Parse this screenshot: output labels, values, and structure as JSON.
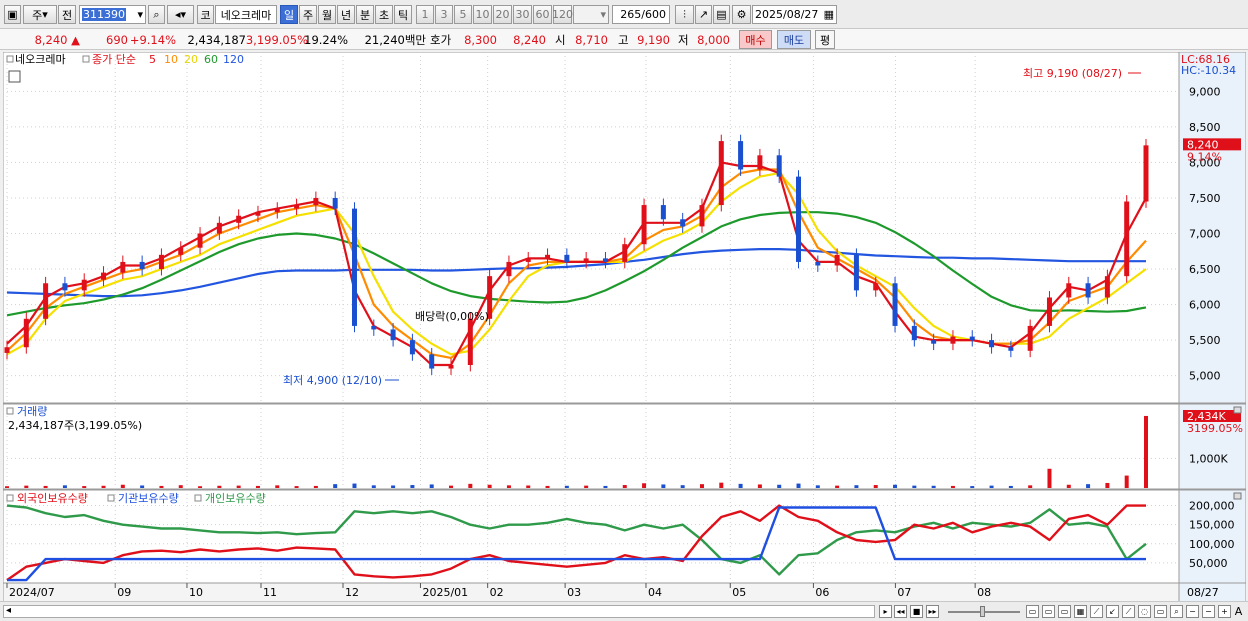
{
  "toolbar": {
    "period_type": "주",
    "range_type": "전",
    "stock_code": "311390",
    "market_tag": "코",
    "stock_name": "네오크레마",
    "periods": [
      "일",
      "주",
      "월",
      "년",
      "분",
      "초",
      "틱"
    ],
    "active_period": "일",
    "intervals": [
      "1",
      "3",
      "5",
      "10",
      "20",
      "30",
      "60",
      "120"
    ],
    "count_current": "265",
    "count_total": "600",
    "date": "2025/08/27"
  },
  "quote": {
    "price": "8,240",
    "change": "690",
    "change_pct": "+9.14%",
    "volume": "2,434,187",
    "volume_pct": "3,199.05%",
    "turnover_pct": "19.24%",
    "amount": "21,240백만",
    "bid_label": "호가",
    "bid": "8,300",
    "open_label": "시",
    "open_ref": "8,240",
    "open": "8,710",
    "high_label": "고",
    "high": "9,190",
    "low_label": "저",
    "low": "8,000",
    "buy_label": "매수",
    "sell_label": "매도",
    "eval_label": "평"
  },
  "colors": {
    "up": "#e0101a",
    "down": "#1a4fd0",
    "ma5": "#e0101a",
    "ma10": "#ff8c00",
    "ma20": "#f5e000",
    "ma60": "#1e9a2c",
    "ma120": "#2255e0",
    "foreign": "#e0101a",
    "institution": "#1e4fe0",
    "individual": "#2f9a4a"
  },
  "chart_data": {
    "type": "line",
    "price_panel": {
      "name": "네오크레마",
      "legend_label": "종가 단순",
      "ma_periods": [
        "5",
        "10",
        "20",
        "60",
        "120"
      ],
      "lc_label": "LC:68.16",
      "hc_label": "HC:-10.34",
      "ylim": [
        4700,
        9300
      ],
      "yticks": [
        "9,000",
        "8,500",
        "8,000",
        "7,500",
        "7,000",
        "6,500",
        "6,000",
        "5,500",
        "5,000"
      ],
      "ytick_values": [
        9000,
        8500,
        8000,
        7500,
        7000,
        6500,
        6000,
        5500,
        5000
      ],
      "current_price_label": "8,240",
      "current_pct_label": "9.14%",
      "current_price": 8240,
      "max_note": "최고 9,190 (08/27)",
      "min_note": "최저 4,900 (12/10)",
      "ex_dividend_note": "배당락(0,00%)",
      "close": [
        5400,
        5800,
        6300,
        6200,
        6350,
        6450,
        6600,
        6500,
        6700,
        6800,
        7000,
        7150,
        7250,
        7300,
        7350,
        7400,
        7500,
        7350,
        5700,
        5650,
        5500,
        5300,
        5100,
        5150,
        5800,
        6400,
        6600,
        6650,
        6700,
        6600,
        6650,
        6600,
        6850,
        7400,
        7200,
        7100,
        7400,
        8300,
        7900,
        8100,
        7800,
        6600,
        6550,
        6700,
        6200,
        6300,
        5700,
        5500,
        5450,
        5550,
        5500,
        5400,
        5350,
        5700,
        6100,
        6300,
        6100,
        6400,
        7450,
        8240
      ],
      "ma5": [
        5450,
        5700,
        6100,
        6250,
        6300,
        6400,
        6550,
        6550,
        6650,
        6800,
        6950,
        7100,
        7200,
        7300,
        7350,
        7400,
        7450,
        7350,
        6200,
        5700,
        5550,
        5400,
        5150,
        5150,
        5650,
        6200,
        6550,
        6650,
        6650,
        6600,
        6600,
        6600,
        6750,
        7150,
        7150,
        7150,
        7350,
        8000,
        7950,
        7950,
        7850,
        6900,
        6600,
        6600,
        6400,
        6300,
        5900,
        5550,
        5500,
        5500,
        5500,
        5450,
        5400,
        5600,
        5950,
        6250,
        6200,
        6350,
        7000,
        7500
      ],
      "ma10": [
        5350,
        5600,
        5950,
        6150,
        6250,
        6350,
        6450,
        6500,
        6600,
        6700,
        6850,
        7000,
        7100,
        7200,
        7300,
        7350,
        7400,
        7350,
        6700,
        6000,
        5700,
        5500,
        5300,
        5250,
        5450,
        5850,
        6300,
        6550,
        6600,
        6600,
        6600,
        6600,
        6650,
        6900,
        7050,
        7100,
        7250,
        7650,
        7850,
        7900,
        7900,
        7300,
        6800,
        6650,
        6500,
        6350,
        6100,
        5750,
        5550,
        5500,
        5500,
        5450,
        5450,
        5500,
        5750,
        6050,
        6150,
        6250,
        6600,
        6900
      ],
      "ma20": [
        5300,
        5450,
        5800,
        6050,
        6150,
        6250,
        6350,
        6400,
        6500,
        6600,
        6700,
        6850,
        6950,
        7050,
        7150,
        7250,
        7300,
        7350,
        7000,
        6400,
        5900,
        5650,
        5450,
        5300,
        5350,
        5650,
        6050,
        6400,
        6550,
        6600,
        6600,
        6600,
        6600,
        6750,
        6900,
        7000,
        7150,
        7450,
        7650,
        7800,
        7850,
        7550,
        7050,
        6750,
        6550,
        6400,
        6250,
        5950,
        5700,
        5550,
        5500,
        5450,
        5450,
        5450,
        5550,
        5800,
        5950,
        6100,
        6300,
        6500
      ],
      "ma60": [
        5850,
        5900,
        5950,
        5990,
        6020,
        6070,
        6140,
        6230,
        6350,
        6480,
        6610,
        6740,
        6850,
        6930,
        6980,
        7000,
        6980,
        6930,
        6850,
        6720,
        6580,
        6440,
        6300,
        6190,
        6120,
        6080,
        6060,
        6040,
        6030,
        6040,
        6100,
        6200,
        6330,
        6470,
        6630,
        6800,
        6950,
        7100,
        7200,
        7260,
        7290,
        7300,
        7300,
        7280,
        7230,
        7150,
        7020,
        6860,
        6680,
        6480,
        6290,
        6110,
        5990,
        5920,
        5910,
        5920,
        5910,
        5900,
        5910,
        5960
      ],
      "ma120": [
        6170,
        6160,
        6150,
        6140,
        6130,
        6120,
        6120,
        6130,
        6160,
        6200,
        6250,
        6310,
        6370,
        6430,
        6470,
        6480,
        6480,
        6480,
        6490,
        6490,
        6490,
        6490,
        6480,
        6480,
        6490,
        6500,
        6510,
        6510,
        6520,
        6530,
        6550,
        6570,
        6600,
        6630,
        6670,
        6710,
        6740,
        6760,
        6770,
        6780,
        6780,
        6770,
        6750,
        6730,
        6710,
        6690,
        6680,
        6670,
        6660,
        6660,
        6650,
        6650,
        6640,
        6630,
        6620,
        6610,
        6610,
        6610,
        6610,
        6610
      ]
    },
    "volume_panel": {
      "name": "거래량",
      "legend_text": "2,434,187주(3,199.05%)",
      "last_label": "2,434K",
      "last_pct_label": "3199.05%",
      "ytick_label": "1,000K",
      "ytick_value": 1000,
      "ylim": [
        0,
        2500
      ],
      "values": [
        60,
        80,
        70,
        90,
        65,
        75,
        110,
        85,
        70,
        95,
        60,
        75,
        80,
        70,
        90,
        65,
        70,
        130,
        150,
        90,
        85,
        100,
        120,
        80,
        140,
        110,
        90,
        85,
        70,
        75,
        80,
        70,
        100,
        160,
        120,
        95,
        130,
        180,
        140,
        120,
        110,
        150,
        90,
        80,
        95,
        100,
        110,
        80,
        75,
        70,
        65,
        80,
        70,
        90,
        650,
        110,
        130,
        170,
        420,
        2434
      ]
    },
    "holdings_panel": {
      "labels": [
        "외국인보유수량",
        "기관보유수량",
        "개인보유수량"
      ],
      "yticks": [
        "200,000",
        "150,000",
        "100,000",
        "50,000"
      ],
      "ytick_values": [
        200000,
        150000,
        100000,
        50000
      ],
      "ylim": [
        0,
        225000
      ],
      "foreign": [
        5000,
        40000,
        50000,
        60000,
        55000,
        50000,
        70000,
        80000,
        82000,
        78000,
        85000,
        80000,
        85000,
        88000,
        82000,
        90000,
        88000,
        85000,
        20000,
        15000,
        12000,
        15000,
        20000,
        35000,
        60000,
        70000,
        55000,
        50000,
        45000,
        40000,
        45000,
        50000,
        70000,
        60000,
        65000,
        55000,
        120000,
        170000,
        185000,
        160000,
        200000,
        170000,
        160000,
        130000,
        110000,
        105000,
        110000,
        150000,
        140000,
        155000,
        130000,
        145000,
        155000,
        145000,
        110000,
        165000,
        175000,
        150000,
        200000,
        200000
      ],
      "institution": [
        5000,
        5000,
        60000,
        60000,
        60000,
        60000,
        60000,
        60000,
        60000,
        60000,
        60000,
        60000,
        60000,
        60000,
        60000,
        60000,
        60000,
        60000,
        60000,
        60000,
        60000,
        60000,
        60000,
        60000,
        60000,
        60000,
        60000,
        60000,
        60000,
        60000,
        60000,
        60000,
        60000,
        60000,
        60000,
        60000,
        60000,
        60000,
        60000,
        60000,
        195000,
        195000,
        195000,
        195000,
        195000,
        195000,
        60000,
        60000,
        60000,
        60000,
        60000,
        60000,
        60000,
        60000,
        60000,
        60000,
        60000,
        60000,
        60000,
        60000
      ],
      "individual": [
        200000,
        195000,
        180000,
        170000,
        175000,
        160000,
        150000,
        145000,
        140000,
        140000,
        135000,
        130000,
        130000,
        128000,
        130000,
        125000,
        128000,
        130000,
        185000,
        180000,
        185000,
        180000,
        185000,
        170000,
        150000,
        140000,
        150000,
        150000,
        155000,
        165000,
        155000,
        150000,
        135000,
        150000,
        140000,
        150000,
        110000,
        60000,
        50000,
        70000,
        20000,
        70000,
        75000,
        110000,
        130000,
        135000,
        130000,
        145000,
        155000,
        140000,
        155000,
        150000,
        145000,
        155000,
        190000,
        150000,
        155000,
        145000,
        60000,
        100000
      ]
    },
    "x_labels": [
      "2024/07",
      "09",
      "10",
      "11",
      "12",
      "2025/01",
      "02",
      "03",
      "04",
      "05",
      "06",
      "07",
      "08",
      "08/27"
    ],
    "x_label_positions": [
      0,
      9.5,
      15.8,
      22.3,
      29.5,
      36.3,
      42.2,
      49,
      56.1,
      63.5,
      70.8,
      78,
      85,
      97
    ]
  }
}
